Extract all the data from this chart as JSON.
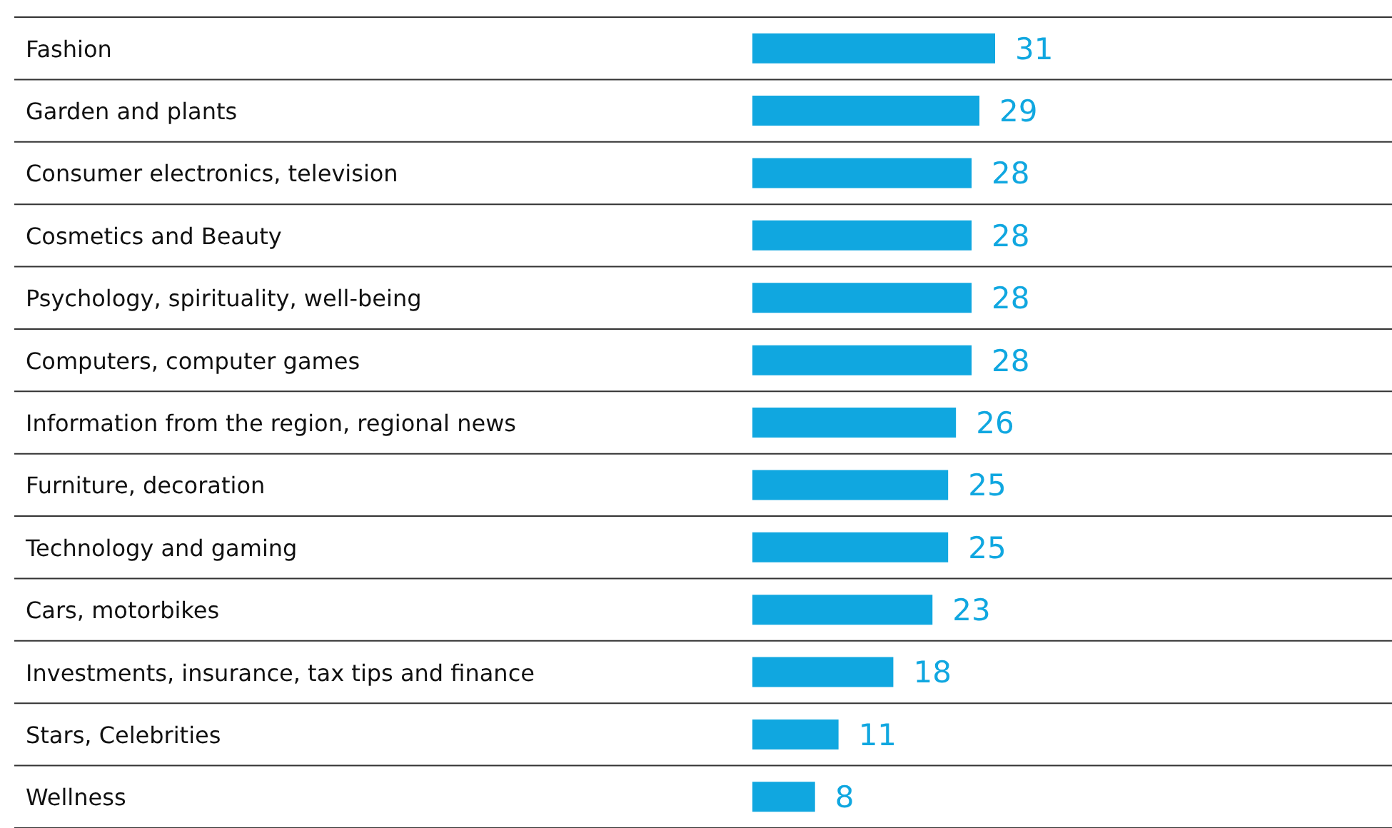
{
  "chart_data": {
    "type": "bar",
    "orientation": "horizontal",
    "categories": [
      "Fashion",
      "Garden and plants",
      "Consumer electronics, television",
      "Cosmetics and Beauty",
      "Psychology, spirituality, well-being",
      "Computers, computer games",
      "Information from the region, regional news",
      "Furniture, decoration",
      "Technology and gaming",
      "Cars, motorbikes",
      "Investments, insurance, tax tips and finance",
      "Stars, Celebrities",
      "Wellness"
    ],
    "values": [
      31,
      29,
      28,
      28,
      28,
      28,
      26,
      25,
      25,
      23,
      18,
      11,
      8
    ],
    "color": "#10a7e0",
    "data_labels": true,
    "grid": "y"
  }
}
